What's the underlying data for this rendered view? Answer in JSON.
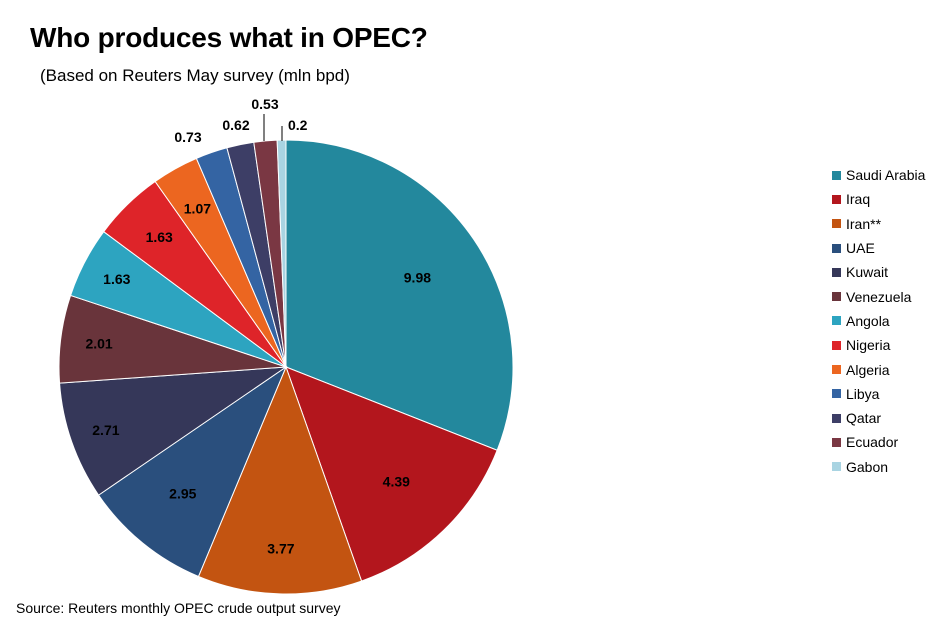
{
  "title": "Who produces what in OPEC?",
  "subtitle": "(Based on Reuters May survey (mln bpd)",
  "source": "Source: Reuters monthly OPEC crude output survey",
  "chart_data": {
    "type": "pie",
    "start_angle_deg": 0,
    "direction": "clockwise",
    "legend_position": "right",
    "slices": [
      {
        "label": "Saudi Arabia",
        "value": 9.98,
        "value_label": "9.98",
        "color": "#23889d"
      },
      {
        "label": "Iraq",
        "value": 4.39,
        "value_label": "4.39",
        "color": "#b3161d"
      },
      {
        "label": "Iran**",
        "value": 3.77,
        "value_label": "3.77",
        "color": "#c35411"
      },
      {
        "label": "UAE",
        "value": 2.95,
        "value_label": "2.95",
        "color": "#2a4f7d"
      },
      {
        "label": "Kuwait",
        "value": 2.71,
        "value_label": "2.71",
        "color": "#353759"
      },
      {
        "label": "Venezuela",
        "value": 2.01,
        "value_label": "2.01",
        "color": "#69343b"
      },
      {
        "label": "Angola",
        "value": 1.63,
        "value_label": "1.63",
        "color": "#2da4c0"
      },
      {
        "label": "Nigeria",
        "value": 1.63,
        "value_label": "1.63",
        "color": "#de2429"
      },
      {
        "label": "Algeria",
        "value": 1.07,
        "value_label": "1.07",
        "color": "#ec6620"
      },
      {
        "label": "Libya",
        "value": 0.73,
        "value_label": "0.73",
        "color": "#3464a3"
      },
      {
        "label": "Qatar",
        "value": 0.62,
        "value_label": "0.62",
        "color": "#3d3e66"
      },
      {
        "label": "Ecuador",
        "value": 0.53,
        "value_label": "0.53",
        "color": "#7a3743"
      },
      {
        "label": "Gabon",
        "value": 0.2,
        "value_label": "0.2",
        "color": "#a9d4e2"
      }
    ]
  }
}
